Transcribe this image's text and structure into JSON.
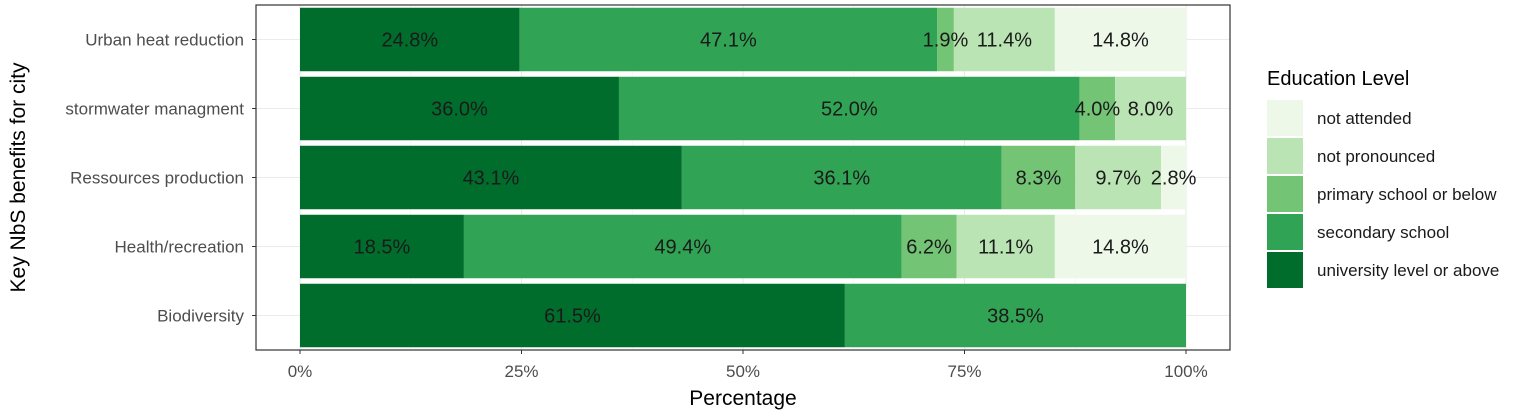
{
  "chart_data": {
    "type": "bar",
    "orientation": "horizontal",
    "stacked": true,
    "xlabel": "Percentage",
    "ylabel": "Key NbS benefits for city",
    "xlim": [
      0,
      100
    ],
    "x_ticks": [
      "0%",
      "25%",
      "50%",
      "75%",
      "100%"
    ],
    "x_tick_values": [
      0,
      25,
      50,
      75,
      100
    ],
    "grid": true,
    "legend_placement": "right",
    "legend_title": "Education Level",
    "categories": [
      "Urban heat reduction",
      "stormwater managment",
      "Ressources production",
      "Health/recreation",
      "Biodiversity"
    ],
    "series": [
      {
        "name": "university level or above",
        "color": "#006d2c",
        "values": [
          24.8,
          36.0,
          43.1,
          18.5,
          61.5
        ],
        "labels": [
          "24.8%",
          "36.0%",
          "43.1%",
          "18.5%",
          "61.5%"
        ]
      },
      {
        "name": "secondary school",
        "color": "#31a354",
        "values": [
          47.1,
          52.0,
          36.1,
          49.4,
          38.5
        ],
        "labels": [
          "47.1%",
          "52.0%",
          "36.1%",
          "49.4%",
          "38.5%"
        ]
      },
      {
        "name": "primary school or below",
        "color": "#74c476",
        "values": [
          1.9,
          4.0,
          8.3,
          6.2,
          0
        ],
        "labels": [
          "1.9%",
          "4.0%",
          "8.3%",
          "6.2%",
          ""
        ]
      },
      {
        "name": "not pronounced",
        "color": "#bae4b3",
        "values": [
          11.4,
          8.0,
          9.7,
          11.1,
          0
        ],
        "labels": [
          "11.4%",
          "8.0%",
          "9.7%",
          "11.1%",
          ""
        ]
      },
      {
        "name": "not attended",
        "color": "#edf8e9",
        "values": [
          14.8,
          0,
          2.8,
          14.8,
          0
        ],
        "labels": [
          "14.8%",
          "",
          "2.8%",
          "14.8%",
          ""
        ]
      }
    ],
    "legend_order": [
      "not attended",
      "not pronounced",
      "primary school or below",
      "secondary school",
      "university level or above"
    ]
  }
}
